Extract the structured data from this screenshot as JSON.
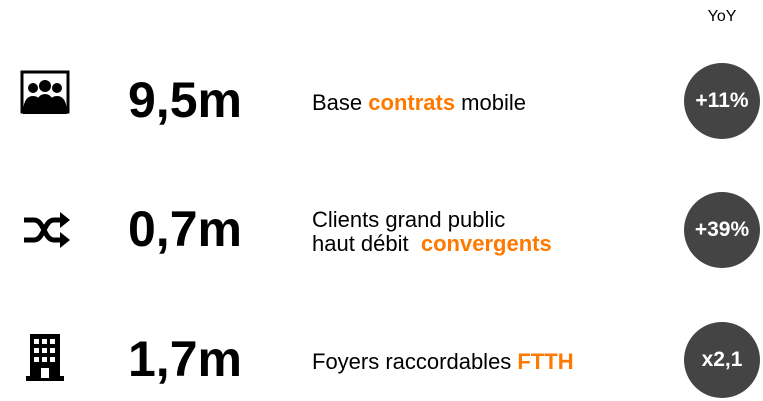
{
  "header": {
    "yoy_label": "YoY"
  },
  "rows": [
    {
      "value": "9,5m",
      "lines": [
        [
          {
            "text": "Base "
          },
          {
            "text": "contrats",
            "emphasis": true
          },
          {
            "text": " mobile"
          }
        ]
      ],
      "yoy": "+11%"
    },
    {
      "value": "0,7m",
      "lines": [
        [
          {
            "text": "Clients grand public"
          }
        ],
        [
          {
            "text": "haut débit  "
          },
          {
            "text": "convergents",
            "emphasis": true
          }
        ]
      ],
      "yoy": "+39%"
    },
    {
      "value": "1,7m",
      "lines": [
        [
          {
            "text": "Foyers raccordables "
          },
          {
            "text": "FTTH",
            "emphasis": true
          }
        ]
      ],
      "yoy": "x2,1"
    }
  ]
}
